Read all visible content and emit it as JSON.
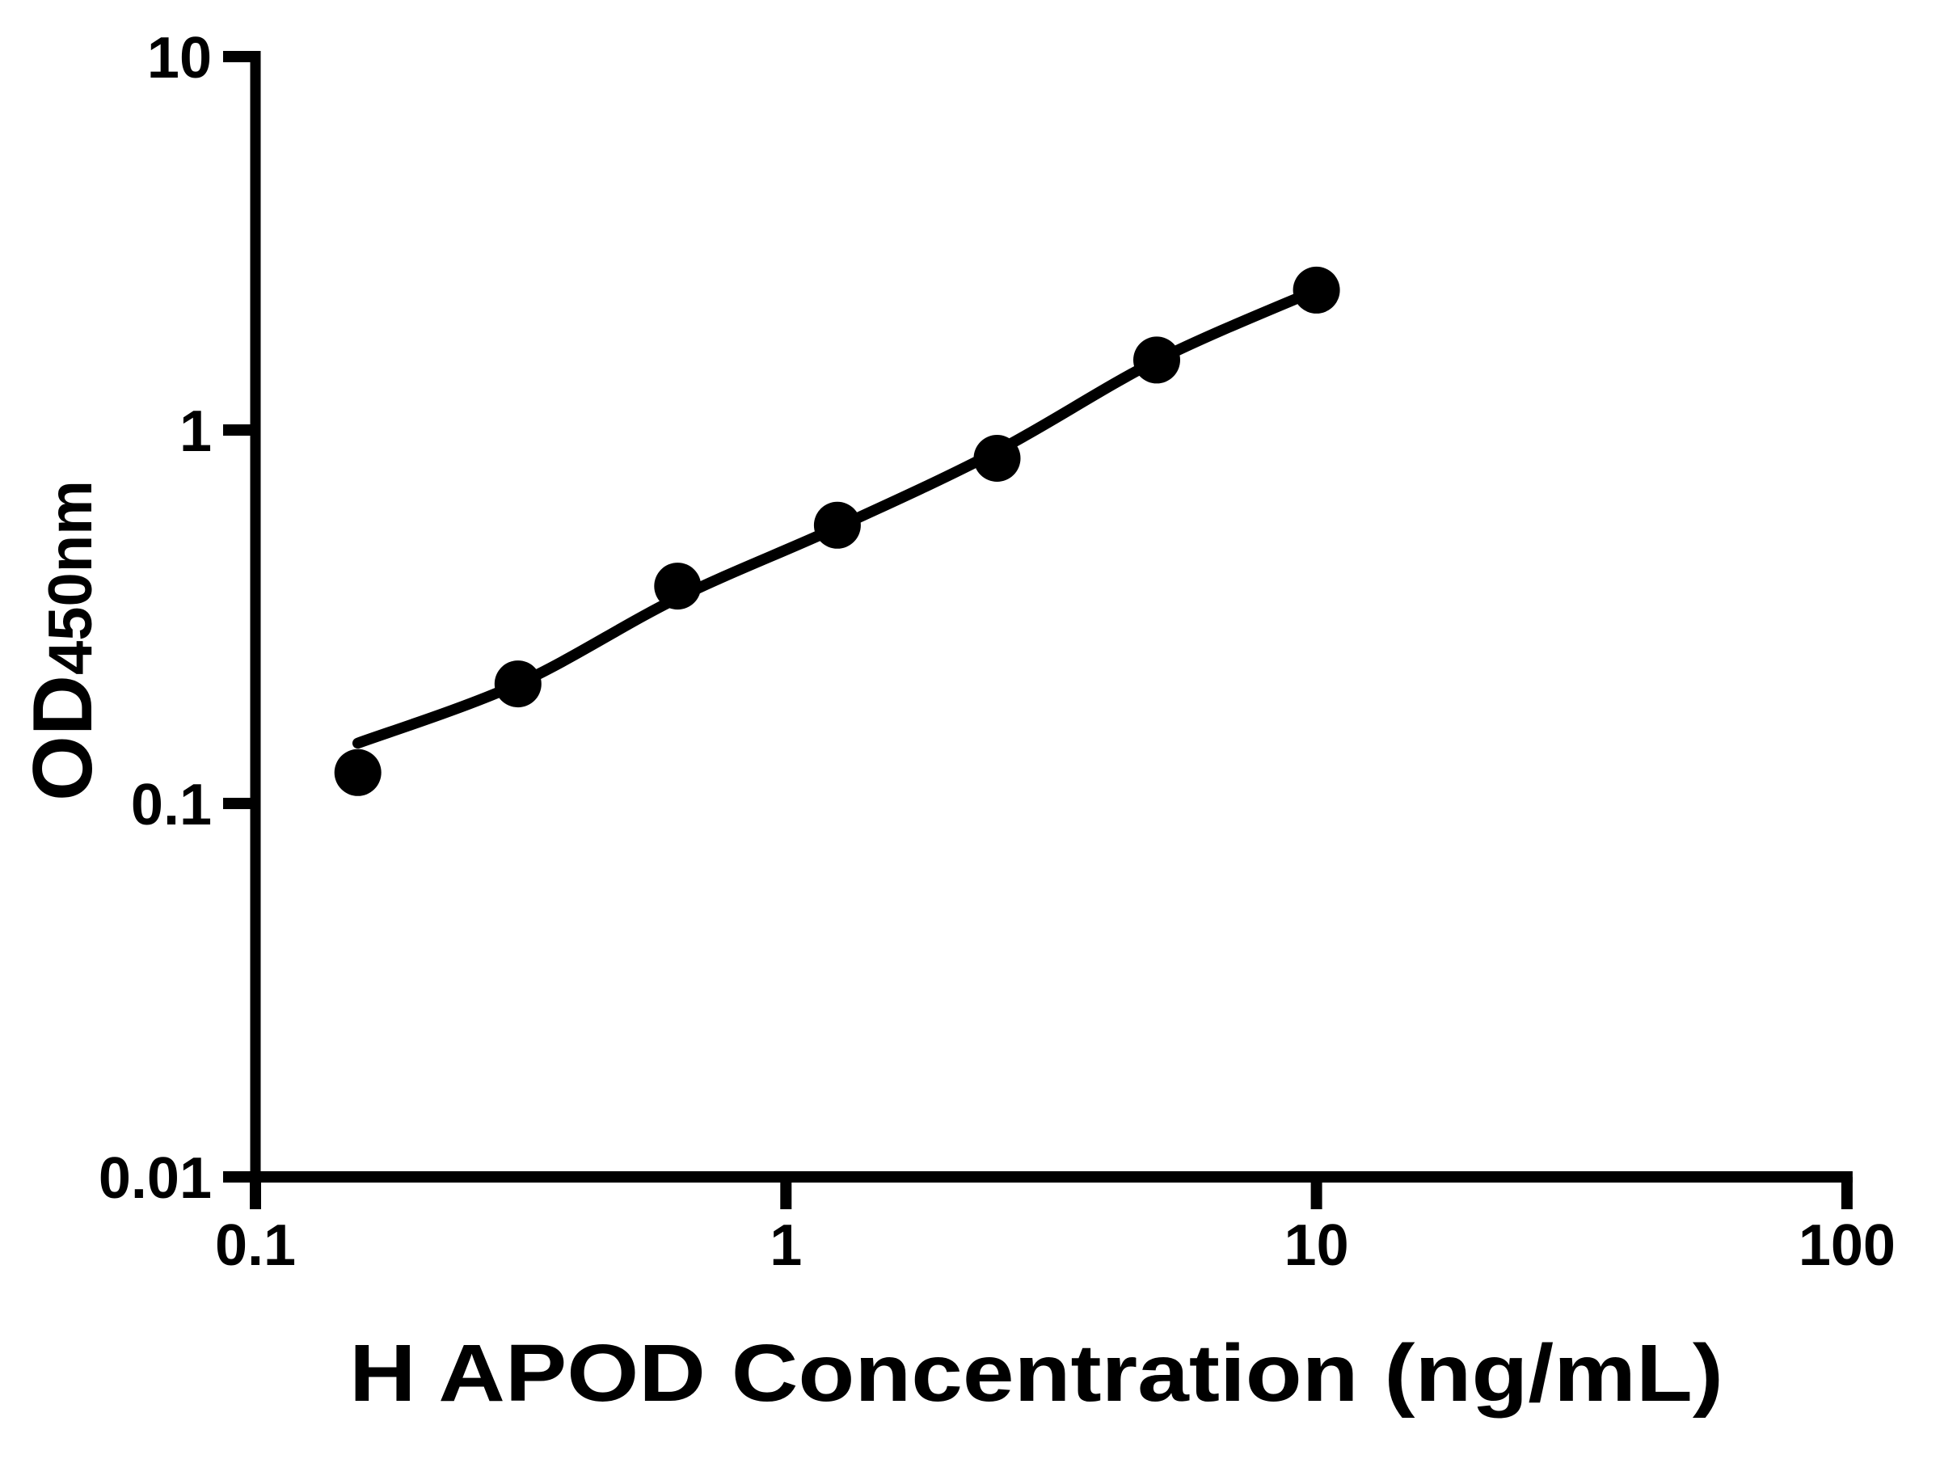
{
  "figure": {
    "background": "#ffffff",
    "ink_color": "#000000"
  },
  "chart_data": {
    "type": "scatter",
    "title": "",
    "xlabel": "H APOD Concentration (ng/mL)",
    "ylabel_main": "OD",
    "ylabel_sub": "450nm",
    "x_scale": "log",
    "y_scale": "log",
    "xlim": [
      0.1,
      100
    ],
    "ylim": [
      0.01,
      10
    ],
    "x_ticks": [
      0.1,
      1,
      10,
      100
    ],
    "x_tick_labels": [
      "0.1",
      "1",
      "10",
      "100"
    ],
    "y_ticks": [
      0.01,
      0.1,
      1,
      10
    ],
    "y_tick_labels": [
      "0.01",
      "0.1",
      "1",
      "10"
    ],
    "grid": false,
    "legend": null,
    "series": [
      {
        "name": "standard-points",
        "type": "scatter",
        "marker": "circle",
        "color": "#000000",
        "x": [
          0.156,
          0.3125,
          0.625,
          1.25,
          2.5,
          5,
          10
        ],
        "y": [
          0.121,
          0.209,
          0.382,
          0.556,
          0.84,
          1.54,
          2.37
        ]
      },
      {
        "name": "fitted-curve",
        "type": "line",
        "color": "#000000",
        "x": [
          0.156,
          0.3125,
          0.625,
          1.25,
          2.5,
          5,
          10
        ],
        "y": [
          0.145,
          0.209,
          0.355,
          0.549,
          0.878,
          1.535,
          2.37
        ]
      }
    ]
  }
}
